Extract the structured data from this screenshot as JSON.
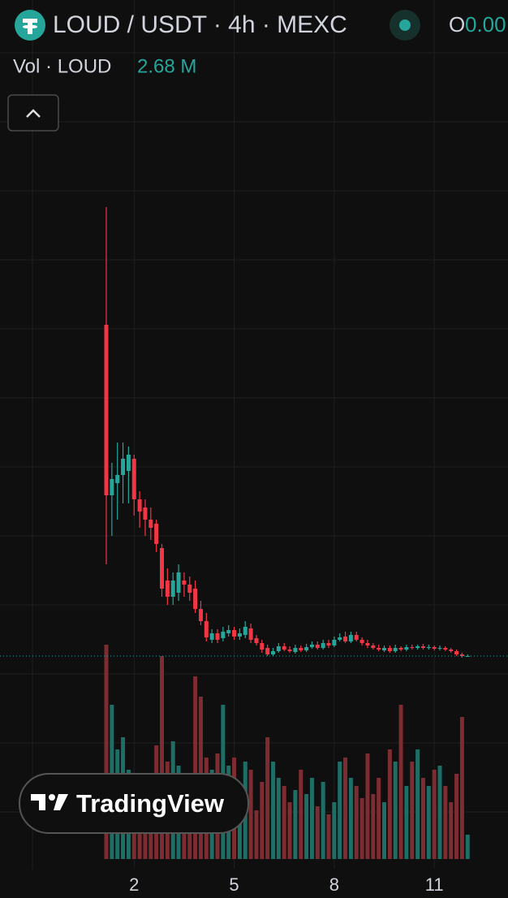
{
  "header": {
    "symbol": "LOUD / USDT · 4h · MEXC",
    "ohlc_label": "O",
    "ohlc_value": "0.00",
    "volume_label": "Vol · LOUD",
    "volume_value": "2.68 M"
  },
  "watermark": "TradingView",
  "chart_data": {
    "type": "candlestick",
    "categories": [
      null,
      null,
      null,
      null,
      null,
      null,
      null,
      null,
      null,
      null,
      null,
      null,
      null,
      null,
      null,
      null,
      null,
      null,
      null,
      null,
      null,
      null,
      null,
      null,
      null,
      null,
      null,
      null,
      null,
      null,
      null,
      null,
      null,
      null,
      null,
      null,
      null,
      null,
      null,
      null,
      null,
      null,
      null,
      null,
      null,
      null,
      null,
      null,
      null,
      null,
      null,
      null,
      null,
      null,
      null,
      null,
      null,
      null,
      null,
      null,
      null,
      null,
      null,
      null,
      null,
      null
    ],
    "open": [
      450,
      240,
      255,
      265,
      270,
      285,
      235,
      225,
      210,
      205,
      175,
      135,
      115,
      120,
      135,
      130,
      125,
      100,
      85,
      62,
      70,
      64,
      70,
      74,
      66,
      68,
      76,
      64,
      58,
      52,
      44,
      48,
      54,
      50,
      47,
      52,
      49,
      53,
      56,
      52,
      58,
      55,
      62,
      66,
      60,
      68,
      62,
      58,
      55,
      52,
      49,
      52,
      48,
      52,
      50,
      53,
      52,
      54,
      52,
      53,
      51,
      52,
      50,
      48,
      44,
      42
    ],
    "high": [
      595,
      280,
      305,
      305,
      300,
      290,
      245,
      235,
      225,
      210,
      180,
      150,
      145,
      155,
      145,
      140,
      135,
      110,
      95,
      75,
      75,
      78,
      80,
      78,
      76,
      85,
      82,
      68,
      62,
      56,
      52,
      58,
      58,
      54,
      56,
      55,
      57,
      60,
      60,
      62,
      62,
      66,
      70,
      72,
      72,
      72,
      65,
      62,
      58,
      56,
      55,
      55,
      56,
      54,
      56,
      56,
      56,
      57,
      56,
      55,
      55,
      54,
      52,
      50,
      46,
      44
    ],
    "low": [
      155,
      190,
      210,
      230,
      230,
      215,
      200,
      190,
      185,
      170,
      115,
      105,
      105,
      110,
      115,
      110,
      95,
      80,
      60,
      58,
      58,
      60,
      66,
      62,
      62,
      64,
      58,
      55,
      46,
      42,
      42,
      46,
      48,
      46,
      45,
      47,
      47,
      51,
      50,
      50,
      52,
      53,
      60,
      58,
      58,
      60,
      55,
      52,
      50,
      48,
      47,
      46,
      46,
      48,
      48,
      50,
      50,
      50,
      50,
      49,
      49,
      48,
      46,
      42,
      40,
      41
    ],
    "close": [
      240,
      260,
      265,
      285,
      290,
      235,
      220,
      210,
      200,
      180,
      125,
      115,
      135,
      145,
      130,
      120,
      100,
      85,
      65,
      70,
      62,
      72,
      74,
      66,
      70,
      78,
      62,
      58,
      50,
      44,
      48,
      54,
      50,
      48,
      52,
      49,
      53,
      56,
      52,
      58,
      55,
      62,
      65,
      60,
      68,
      62,
      58,
      55,
      52,
      50,
      52,
      48,
      52,
      50,
      53,
      52,
      54,
      52,
      53,
      51,
      52,
      50,
      48,
      44,
      42,
      42
    ],
    "volume": [
      264,
      190,
      135,
      150,
      110,
      90,
      80,
      70,
      95,
      140,
      250,
      120,
      145,
      115,
      95,
      100,
      225,
      200,
      125,
      110,
      130,
      190,
      115,
      125,
      75,
      120,
      110,
      60,
      95,
      150,
      120,
      100,
      90,
      70,
      85,
      110,
      80,
      100,
      65,
      95,
      55,
      70,
      120,
      125,
      100,
      90,
      75,
      130,
      80,
      100,
      70,
      135,
      120,
      190,
      90,
      120,
      135,
      100,
      90,
      110,
      115,
      90,
      70,
      105,
      175,
      30
    ],
    "up_color": "#26a69a",
    "down_color": "#f23645",
    "up_volume_color": "#1e6e66",
    "down_volume_color": "#7d2c31",
    "last_price": 42,
    "ylim": [
      0,
      700
    ],
    "volume_ylim": [
      0,
      270
    ],
    "xticks": [
      {
        "value": 5,
        "label": "2"
      },
      {
        "value": 23,
        "label": "5"
      },
      {
        "value": 41,
        "label": "8"
      },
      {
        "value": 59,
        "label": "11"
      }
    ]
  }
}
